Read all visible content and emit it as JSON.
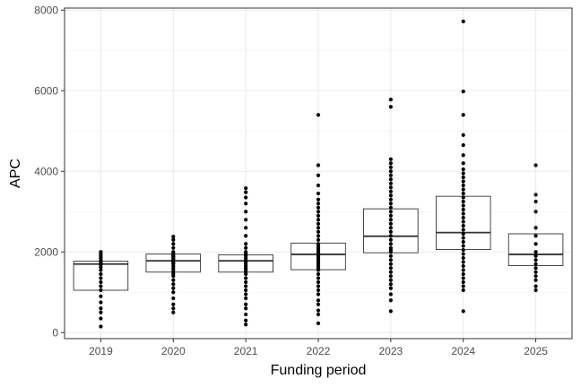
{
  "chart_data": {
    "type": "box",
    "xlabel": "Funding period",
    "ylabel": "APC",
    "ylim": [
      -150,
      8050
    ],
    "yticks": [
      0,
      2000,
      4000,
      6000,
      8000
    ],
    "grid": true,
    "categories": [
      "2019",
      "2020",
      "2021",
      "2022",
      "2023",
      "2024",
      "2025"
    ],
    "boxes": [
      {
        "category": "2019",
        "q1": 1050,
        "median": 1700,
        "q3": 1770
      },
      {
        "category": "2020",
        "q1": 1500,
        "median": 1780,
        "q3": 1950
      },
      {
        "category": "2021",
        "q1": 1500,
        "median": 1780,
        "q3": 1930
      },
      {
        "category": "2022",
        "q1": 1560,
        "median": 1940,
        "q3": 2220
      },
      {
        "category": "2023",
        "q1": 1980,
        "median": 2390,
        "q3": 3070
      },
      {
        "category": "2024",
        "q1": 2060,
        "median": 2480,
        "q3": 3380
      },
      {
        "category": "2025",
        "q1": 1660,
        "median": 1940,
        "q3": 2450
      }
    ],
    "points": {
      "2019": [
        150,
        350,
        500,
        600,
        750,
        900,
        1050,
        1150,
        1250,
        1350,
        1450,
        1550,
        1620,
        1680,
        1720,
        1760,
        1800,
        1850,
        1900,
        1950,
        2000
      ],
      "2020": [
        500,
        600,
        700,
        850,
        1000,
        1100,
        1200,
        1300,
        1400,
        1450,
        1500,
        1550,
        1600,
        1650,
        1700,
        1720,
        1750,
        1780,
        1800,
        1820,
        1850,
        1880,
        1900,
        1930,
        1950,
        2000,
        2100,
        2200,
        2300,
        2380
      ],
      "2021": [
        200,
        300,
        450,
        600,
        700,
        850,
        950,
        1050,
        1150,
        1250,
        1350,
        1450,
        1500,
        1550,
        1600,
        1650,
        1700,
        1750,
        1780,
        1800,
        1850,
        1900,
        1930,
        1950,
        2000,
        2100,
        2200,
        2400,
        2600,
        2800,
        3000,
        3200,
        3350,
        3480,
        3580
      ],
      "2022": [
        230,
        450,
        550,
        700,
        800,
        950,
        1050,
        1150,
        1250,
        1350,
        1450,
        1550,
        1600,
        1650,
        1700,
        1750,
        1800,
        1850,
        1900,
        1950,
        2000,
        2050,
        2100,
        2150,
        2200,
        2300,
        2400,
        2500,
        2600,
        2700,
        2800,
        2900,
        3000,
        3100,
        3200,
        3300,
        3450,
        3650,
        3900,
        4150,
        5400
      ],
      "2023": [
        530,
        800,
        950,
        1100,
        1200,
        1300,
        1400,
        1500,
        1600,
        1700,
        1800,
        1900,
        2000,
        2050,
        2100,
        2200,
        2300,
        2400,
        2500,
        2600,
        2700,
        2800,
        2900,
        3000,
        3100,
        3200,
        3300,
        3400,
        3500,
        3600,
        3700,
        3800,
        3900,
        4000,
        4100,
        4200,
        4300,
        5600,
        5780
      ],
      "2024": [
        530,
        1050,
        1150,
        1250,
        1350,
        1450,
        1550,
        1650,
        1750,
        1850,
        1950,
        2050,
        2150,
        2250,
        2350,
        2450,
        2550,
        2650,
        2750,
        2850,
        2950,
        3050,
        3150,
        3250,
        3350,
        3450,
        3550,
        3650,
        3750,
        3850,
        3950,
        4050,
        4200,
        4400,
        4650,
        4900,
        5400,
        5980,
        7720
      ],
      "2025": [
        1050,
        1150,
        1300,
        1400,
        1500,
        1600,
        1700,
        1800,
        1900,
        2000,
        2200,
        2400,
        2600,
        3000,
        3250,
        3420,
        4150
      ]
    }
  }
}
